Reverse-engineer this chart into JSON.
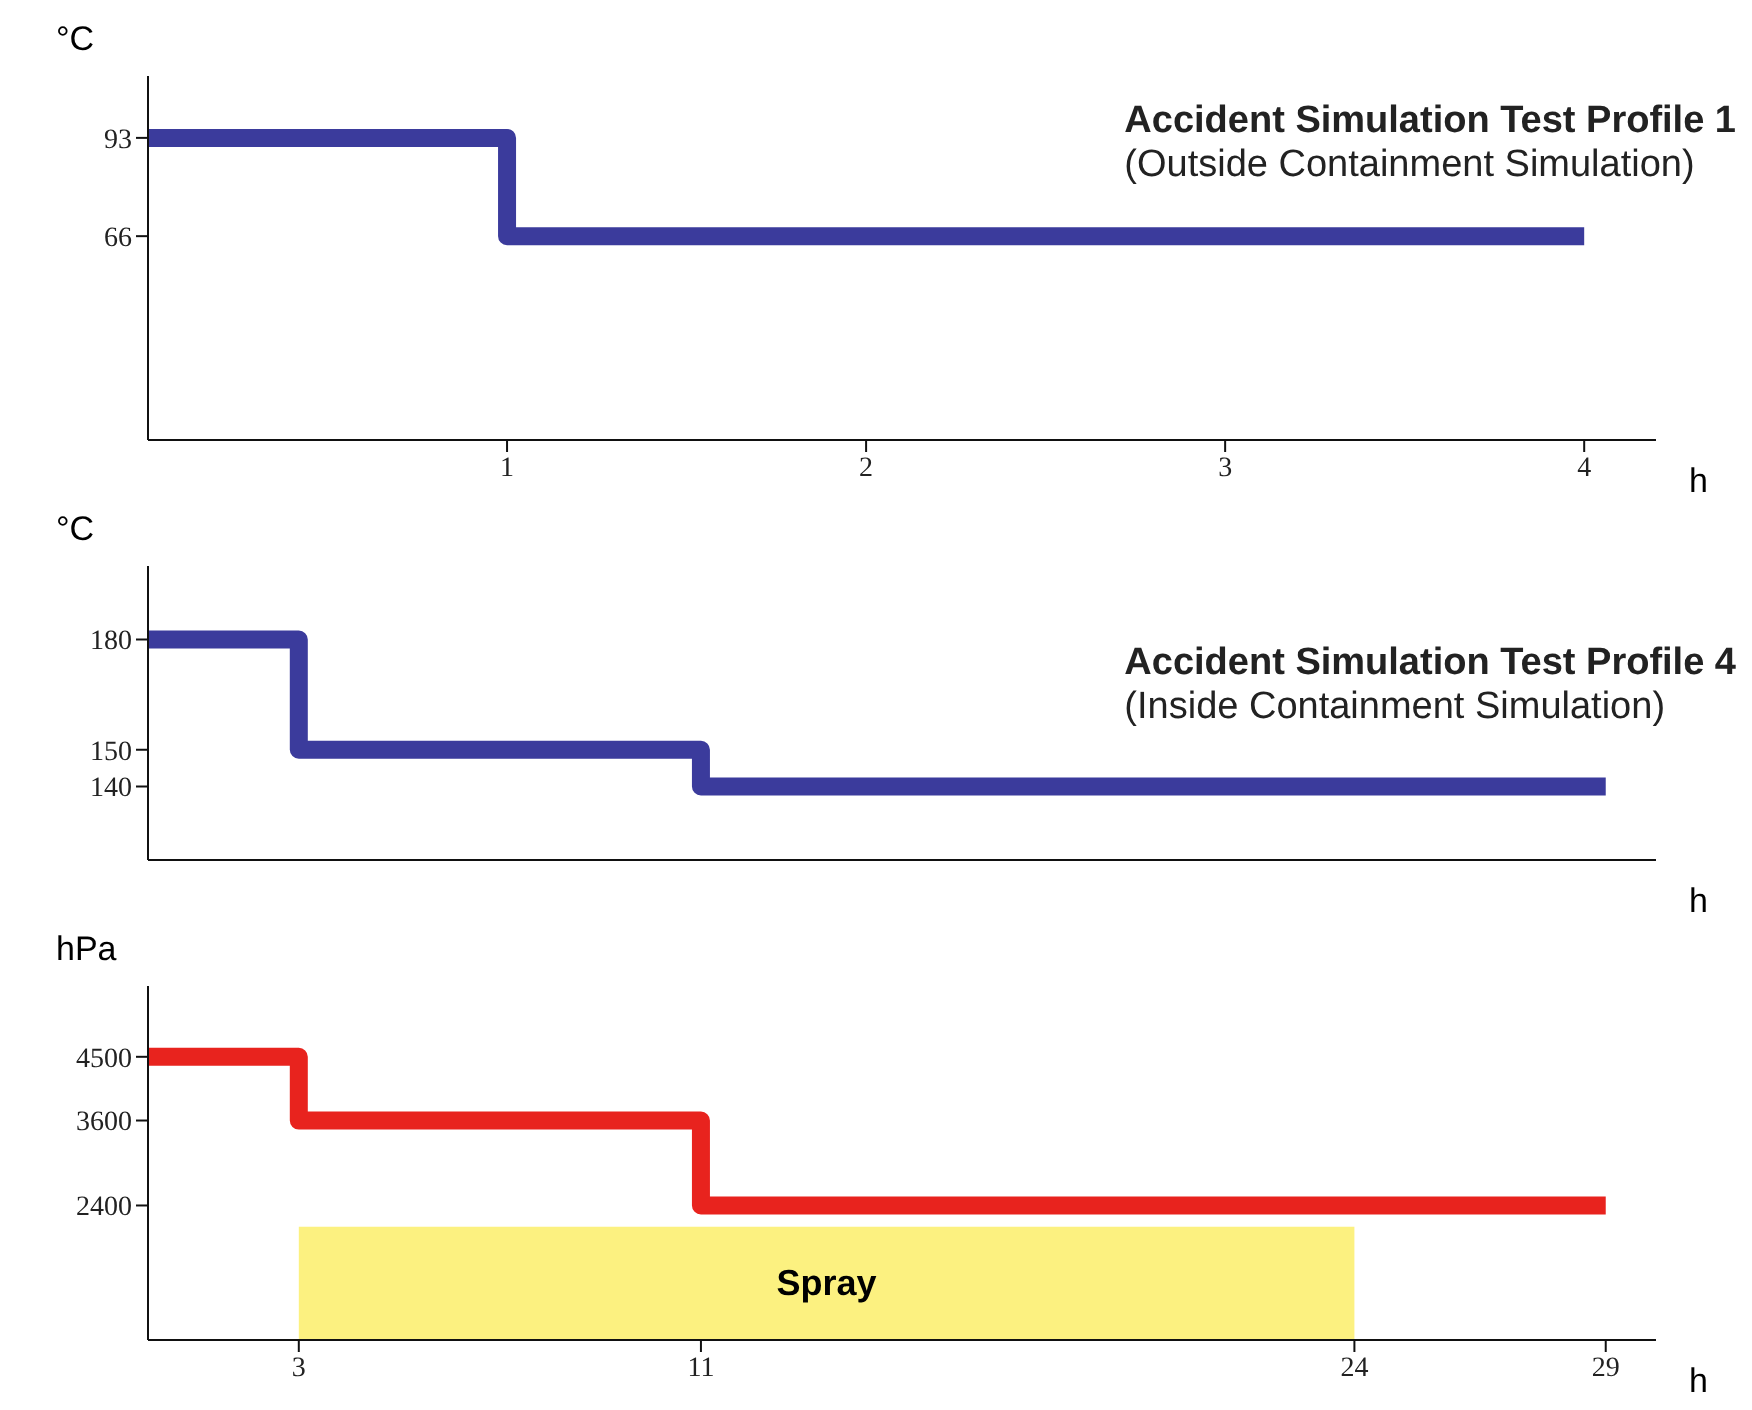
{
  "chart_data": [
    {
      "type": "step",
      "title": "Accident Simulation Test Profile 1",
      "subtitle": "(Outside Containment Simulation)",
      "xlabel": "h",
      "ylabel": "°C",
      "xlim": [
        0,
        4.2
      ],
      "xticks": [
        1,
        2,
        3,
        4
      ],
      "ylim": [
        10,
        110
      ],
      "yticks": [
        66,
        93
      ],
      "series": [
        {
          "color": "#3b3b9c",
          "x": [
            0,
            1,
            4
          ],
          "values": [
            93,
            66,
            66
          ]
        }
      ]
    },
    {
      "type": "step",
      "title": "Accident Simulation Test Profile 4",
      "subtitle": "(Inside Containment Simulation)",
      "xlabel": "h",
      "ylabel": "°C",
      "xlim": [
        0,
        30
      ],
      "xticks": [
        3,
        11,
        24,
        29
      ],
      "ylim": [
        120,
        200
      ],
      "yticks": [
        140,
        150,
        180
      ],
      "tick_labels": "y",
      "series": [
        {
          "color": "#3b3b9c",
          "x": [
            0,
            3,
            11,
            29
          ],
          "values": [
            180,
            150,
            140,
            140
          ]
        }
      ]
    },
    {
      "type": "step",
      "xlabel": "h",
      "ylabel": "hPa",
      "xlim": [
        0,
        30
      ],
      "xticks": [
        3,
        11,
        24,
        29
      ],
      "ylim": [
        500,
        5500
      ],
      "yticks": [
        2400,
        3600,
        4500
      ],
      "series": [
        {
          "type": "area",
          "name": "Spray",
          "color": "#fbee6a",
          "x": [
            3,
            24
          ],
          "values": [
            2100,
            2100
          ]
        },
        {
          "color": "#e8231e",
          "x": [
            0,
            3,
            11,
            29
          ],
          "values": [
            4500,
            3600,
            2400,
            2400
          ]
        }
      ]
    }
  ]
}
